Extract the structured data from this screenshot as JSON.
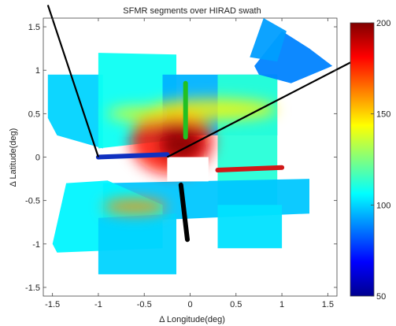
{
  "chart_data": {
    "type": "heatmap",
    "title": "SFMR segments over HIRAD swath",
    "xlabel": "Δ Longitude(deg)",
    "ylabel": "Δ Latitude(deg)",
    "xlim": [
      -1.6,
      1.6
    ],
    "ylim": [
      -1.6,
      1.6
    ],
    "x_ticks": [
      -1.5,
      -1,
      -0.5,
      0,
      0.5,
      1,
      1.5
    ],
    "y_ticks": [
      -1.5,
      -1,
      -0.5,
      0,
      0.5,
      1,
      1.5
    ],
    "x_tick_labels": [
      "-1.5",
      "-1",
      "-0.5",
      "0",
      "0.5",
      "1",
      "1.5"
    ],
    "y_tick_labels": [
      "-1.5",
      "-1",
      "-0.5",
      "0",
      "0.5",
      "1",
      "1.5"
    ],
    "colorbar": {
      "min": 50,
      "max": 200,
      "ticks": [
        50,
        100,
        150,
        200
      ],
      "tick_labels": [
        "50",
        "100",
        "150",
        "200"
      ],
      "colormap": "jet"
    },
    "sfmr_segments": [
      {
        "color": "#1030c0",
        "points": [
          [
            -1.0,
            0.0
          ],
          [
            -0.25,
            0.03
          ]
        ]
      },
      {
        "color": "#22c022",
        "points": [
          [
            -0.05,
            0.85
          ],
          [
            -0.05,
            0.23
          ]
        ]
      },
      {
        "color": "#d01818",
        "points": [
          [
            0.3,
            -0.15
          ],
          [
            1.0,
            -0.12
          ]
        ]
      },
      {
        "color": "#000000",
        "points": [
          [
            -0.1,
            -0.32
          ],
          [
            -0.03,
            -0.95
          ]
        ]
      }
    ],
    "flight_lines": [
      {
        "color": "#000000",
        "points": [
          [
            -1.55,
            1.75
          ],
          [
            -1.0,
            0.0
          ]
        ]
      },
      {
        "color": "#000000",
        "points": [
          [
            -0.25,
            0.0
          ],
          [
            1.95,
            1.2
          ]
        ]
      }
    ],
    "swath_patches": [
      {
        "value": 100,
        "points": [
          [
            -1.55,
            0.95
          ],
          [
            -1.55,
            0.45
          ],
          [
            -1.45,
            0.25
          ],
          [
            -0.95,
            0.1
          ],
          [
            -0.95,
            0.95
          ]
        ]
      },
      {
        "value": 108,
        "points": [
          [
            -1.0,
            1.2
          ],
          [
            -0.15,
            1.18
          ],
          [
            -0.15,
            0.2
          ],
          [
            -1.0,
            0.1
          ]
        ]
      },
      {
        "value": 95,
        "points": [
          [
            -0.3,
            0.95
          ],
          [
            0.95,
            0.95
          ],
          [
            0.95,
            0.25
          ],
          [
            -0.3,
            0.25
          ]
        ]
      },
      {
        "value": 112,
        "points": [
          [
            0.3,
            0.95
          ],
          [
            0.95,
            0.95
          ],
          [
            0.95,
            -0.55
          ],
          [
            0.3,
            -0.55
          ]
        ]
      },
      {
        "value": 98,
        "points": [
          [
            -0.95,
            -0.3
          ],
          [
            1.3,
            -0.25
          ],
          [
            1.3,
            -0.65
          ],
          [
            -0.95,
            -0.75
          ]
        ]
      },
      {
        "value": 105,
        "points": [
          [
            -1.5,
            -1.0
          ],
          [
            -1.35,
            -0.3
          ],
          [
            -0.9,
            -0.27
          ],
          [
            -0.3,
            -0.55
          ],
          [
            -0.3,
            -1.05
          ],
          [
            -1.45,
            -1.1
          ]
        ]
      },
      {
        "value": 100,
        "points": [
          [
            -1.0,
            -0.7
          ],
          [
            -0.15,
            -0.65
          ],
          [
            -0.15,
            -1.35
          ],
          [
            -1.0,
            -1.35
          ]
        ]
      },
      {
        "value": 102,
        "points": [
          [
            0.3,
            -0.55
          ],
          [
            1.0,
            -0.55
          ],
          [
            1.0,
            -1.05
          ],
          [
            0.3,
            -1.05
          ]
        ]
      },
      {
        "value": 88,
        "points": [
          [
            0.7,
            1.05
          ],
          [
            1.0,
            1.45
          ],
          [
            1.3,
            1.25
          ],
          [
            1.55,
            1.05
          ],
          [
            1.1,
            0.85
          ],
          [
            0.75,
            0.95
          ]
        ]
      },
      {
        "value": 92,
        "points": [
          [
            0.65,
            1.15
          ],
          [
            0.8,
            1.6
          ],
          [
            1.05,
            1.45
          ],
          [
            0.95,
            1.1
          ]
        ]
      }
    ],
    "hot_spots": [
      {
        "x": -0.2,
        "y": 0.18,
        "rx": 0.45,
        "ry": 0.38,
        "value": 180
      },
      {
        "x": -0.1,
        "y": 0.15,
        "rx": 0.24,
        "ry": 0.2,
        "value": 200
      },
      {
        "x": -0.6,
        "y": -0.57,
        "rx": 0.35,
        "ry": 0.09,
        "value": 160
      },
      {
        "x": 0.25,
        "y": 0.55,
        "rx": 0.7,
        "ry": 0.12,
        "value": 145
      },
      {
        "x": -0.55,
        "y": 0.5,
        "rx": 0.35,
        "ry": 0.08,
        "value": 140
      }
    ],
    "empty_regions": [
      {
        "points": [
          [
            -0.25,
            0.0
          ],
          [
            0.2,
            0.0
          ],
          [
            0.2,
            -0.28
          ],
          [
            -0.25,
            -0.28
          ]
        ]
      }
    ]
  }
}
